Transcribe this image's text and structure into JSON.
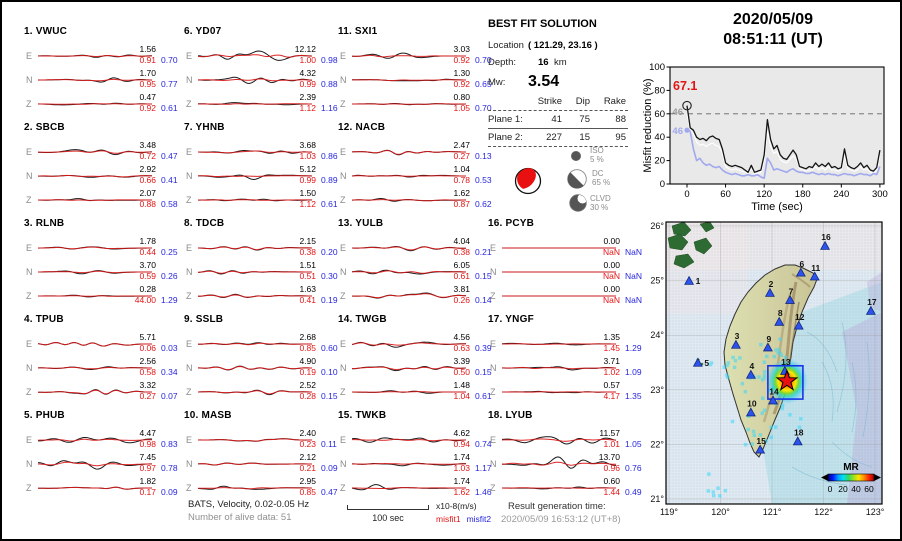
{
  "header": {
    "date": "2020/05/09",
    "time": "08:51:11  (UT)"
  },
  "best_fit": {
    "title": "BEST FIT SOLUTION",
    "location_label": "Location",
    "location_value": "( 121.29,  23.16 )",
    "depth_label": "Depth:",
    "depth_value": "16",
    "depth_unit": "km",
    "mw_label": "Mw:",
    "mw_value": "3.54",
    "table": {
      "headers": [
        "Strike",
        "Dip",
        "Rake"
      ],
      "rows": [
        {
          "label": "Plane 1:",
          "strike": "41",
          "dip": "75",
          "rake": "88"
        },
        {
          "label": "Plane 2:",
          "strike": "227",
          "dip": "15",
          "rake": "95"
        }
      ]
    },
    "decomposition": [
      {
        "name": "ISO",
        "pct": "5 %"
      },
      {
        "name": "DC",
        "pct": "65 %"
      },
      {
        "name": "CLVD",
        "pct": "30 %"
      }
    ]
  },
  "stations": [
    {
      "num": 1,
      "code": "VWUC",
      "components": [
        {
          "ch": "E",
          "amp": "1.56",
          "m1": "0.91",
          "m2": "0.70"
        },
        {
          "ch": "N",
          "amp": "1.70",
          "m1": "0.95",
          "m2": "0.77"
        },
        {
          "ch": "Z",
          "amp": "0.47",
          "m1": "0.92",
          "m2": "0.61"
        }
      ]
    },
    {
      "num": 2,
      "code": "SBCB",
      "components": [
        {
          "ch": "E",
          "amp": "3.48",
          "m1": "0.72",
          "m2": "0.47"
        },
        {
          "ch": "N",
          "amp": "2.92",
          "m1": "0.66",
          "m2": "0.41"
        },
        {
          "ch": "Z",
          "amp": "2.07",
          "m1": "0.88",
          "m2": "0.58"
        }
      ]
    },
    {
      "num": 3,
      "code": "RLNB",
      "components": [
        {
          "ch": "E",
          "amp": "1.78",
          "m1": "0.44",
          "m2": "0.25"
        },
        {
          "ch": "N",
          "amp": "3.70",
          "m1": "0.59",
          "m2": "0.26"
        },
        {
          "ch": "Z",
          "amp": "0.28",
          "m1": "44.00",
          "m2": "1.29"
        }
      ]
    },
    {
      "num": 4,
      "code": "TPUB",
      "components": [
        {
          "ch": "E",
          "amp": "5.71",
          "m1": "0.06",
          "m2": "0.03"
        },
        {
          "ch": "N",
          "amp": "2.56",
          "m1": "0.58",
          "m2": "0.34"
        },
        {
          "ch": "Z",
          "amp": "3.32",
          "m1": "0.27",
          "m2": "0.07"
        }
      ]
    },
    {
      "num": 5,
      "code": "PHUB",
      "components": [
        {
          "ch": "E",
          "amp": "4.47",
          "m1": "0.98",
          "m2": "0.83"
        },
        {
          "ch": "N",
          "amp": "7.45",
          "m1": "0.97",
          "m2": "0.78"
        },
        {
          "ch": "Z",
          "amp": "1.82",
          "m1": "0.17",
          "m2": "0.09"
        }
      ]
    },
    {
      "num": 6,
      "code": "YD07",
      "components": [
        {
          "ch": "E",
          "amp": "12.12",
          "m1": "1.00",
          "m2": "0.98"
        },
        {
          "ch": "N",
          "amp": "4.32",
          "m1": "0.99",
          "m2": "0.88"
        },
        {
          "ch": "Z",
          "amp": "2.39",
          "m1": "1.12",
          "m2": "1.16"
        }
      ]
    },
    {
      "num": 7,
      "code": "YHNB",
      "components": [
        {
          "ch": "E",
          "amp": "3.68",
          "m1": "1.03",
          "m2": "0.86"
        },
        {
          "ch": "N",
          "amp": "5.12",
          "m1": "0.99",
          "m2": "0.89"
        },
        {
          "ch": "Z",
          "amp": "1.50",
          "m1": "1.12",
          "m2": "0.61"
        }
      ]
    },
    {
      "num": 8,
      "code": "TDCB",
      "components": [
        {
          "ch": "E",
          "amp": "2.15",
          "m1": "0.38",
          "m2": "0.20"
        },
        {
          "ch": "N",
          "amp": "1.51",
          "m1": "0.51",
          "m2": "0.30"
        },
        {
          "ch": "Z",
          "amp": "1.63",
          "m1": "0.41",
          "m2": "0.19"
        }
      ]
    },
    {
      "num": 9,
      "code": "SSLB",
      "components": [
        {
          "ch": "E",
          "amp": "2.68",
          "m1": "0.85",
          "m2": "0.60"
        },
        {
          "ch": "N",
          "amp": "4.90",
          "m1": "0.19",
          "m2": "0.10"
        },
        {
          "ch": "Z",
          "amp": "2.52",
          "m1": "0.28",
          "m2": "0.15"
        }
      ]
    },
    {
      "num": 10,
      "code": "MASB",
      "components": [
        {
          "ch": "E",
          "amp": "2.40",
          "m1": "0.23",
          "m2": "0.11"
        },
        {
          "ch": "N",
          "amp": "2.12",
          "m1": "0.21",
          "m2": "0.09"
        },
        {
          "ch": "Z",
          "amp": "2.95",
          "m1": "0.85",
          "m2": "0.47"
        }
      ]
    },
    {
      "num": 11,
      "code": "SXI1",
      "components": [
        {
          "ch": "E",
          "amp": "3.03",
          "m1": "0.92",
          "m2": "0.70"
        },
        {
          "ch": "N",
          "amp": "1.30",
          "m1": "0.92",
          "m2": "0.65"
        },
        {
          "ch": "Z",
          "amp": "0.80",
          "m1": "1.05",
          "m2": "0.70"
        }
      ]
    },
    {
      "num": 12,
      "code": "NACB",
      "components": [
        {
          "ch": "E",
          "amp": "2.47",
          "m1": "0.27",
          "m2": "0.13"
        },
        {
          "ch": "N",
          "amp": "1.04",
          "m1": "0.78",
          "m2": "0.53"
        },
        {
          "ch": "Z",
          "amp": "1.62",
          "m1": "0.87",
          "m2": "0.62"
        }
      ]
    },
    {
      "num": 13,
      "code": "YULB",
      "components": [
        {
          "ch": "E",
          "amp": "4.04",
          "m1": "0.38",
          "m2": "0.21"
        },
        {
          "ch": "N",
          "amp": "6.05",
          "m1": "0.61",
          "m2": "0.15"
        },
        {
          "ch": "Z",
          "amp": "3.81",
          "m1": "0.26",
          "m2": "0.14"
        }
      ]
    },
    {
      "num": 14,
      "code": "TWGB",
      "components": [
        {
          "ch": "E",
          "amp": "4.56",
          "m1": "0.63",
          "m2": "0.39"
        },
        {
          "ch": "N",
          "amp": "3.39",
          "m1": "0.50",
          "m2": "0.15"
        },
        {
          "ch": "Z",
          "amp": "1.48",
          "m1": "1.04",
          "m2": "0.61"
        }
      ]
    },
    {
      "num": 15,
      "code": "TWKB",
      "components": [
        {
          "ch": "E",
          "amp": "4.62",
          "m1": "0.94",
          "m2": "0.74"
        },
        {
          "ch": "N",
          "amp": "1.74",
          "m1": "1.03",
          "m2": "1.17"
        },
        {
          "ch": "Z",
          "amp": "1.74",
          "m1": "1.62",
          "m2": "1.46"
        }
      ]
    },
    {
      "num": 16,
      "code": "PCYB",
      "components": [
        {
          "ch": "E",
          "amp": "0.00",
          "m1": "NaN",
          "m2": "NaN"
        },
        {
          "ch": "N",
          "amp": "0.00",
          "m1": "NaN",
          "m2": "NaN"
        },
        {
          "ch": "Z",
          "amp": "0.00",
          "m1": "NaN",
          "m2": "NaN"
        }
      ]
    },
    {
      "num": 17,
      "code": "YNGF",
      "components": [
        {
          "ch": "E",
          "amp": "1.35",
          "m1": "1.45",
          "m2": "1.29"
        },
        {
          "ch": "N",
          "amp": "3.71",
          "m1": "1.02",
          "m2": "1.09"
        },
        {
          "ch": "Z",
          "amp": "0.57",
          "m1": "4.17",
          "m2": "1.35"
        }
      ]
    },
    {
      "num": 18,
      "code": "LYUB",
      "components": [
        {
          "ch": "E",
          "amp": "11.57",
          "m1": "1.01",
          "m2": "1.05"
        },
        {
          "ch": "N",
          "amp": "13.70",
          "m1": "0.96",
          "m2": "0.76"
        },
        {
          "ch": "Z",
          "amp": "0.60",
          "m1": "1.44",
          "m2": "0.49"
        }
      ]
    }
  ],
  "chart_data": {
    "type": "line",
    "title": "",
    "xlabel": "Time (sec)",
    "ylabel": "Misfit reduction (%)",
    "xlim": [
      -10,
      302
    ],
    "ylim": [
      0,
      100
    ],
    "xticks": [
      0,
      60,
      120,
      180,
      240,
      300
    ],
    "yticks": [
      0,
      20,
      40,
      60,
      80,
      100
    ],
    "x_start": 0,
    "x_step": 5,
    "series": [
      {
        "name": "misfit reduction raw",
        "color": "#141414",
        "values": [
          67,
          48,
          46,
          40,
          38,
          39,
          37,
          40,
          41,
          39,
          38,
          30,
          18,
          16,
          15,
          16,
          15,
          14,
          12,
          10,
          16,
          10,
          11,
          12,
          25,
          55,
          38,
          30,
          33,
          25,
          22,
          21,
          25,
          29,
          25,
          15,
          14,
          13,
          15,
          14,
          18,
          15,
          17,
          15,
          18,
          14,
          15,
          13,
          14,
          30,
          16,
          14,
          13,
          15,
          18,
          14,
          16,
          12,
          11,
          14,
          29
        ]
      },
      {
        "name": "misfit reduction mid",
        "color": "#ffffff",
        "values": [
          60,
          46,
          43,
          36,
          33,
          34,
          32,
          34,
          35,
          33,
          32,
          26,
          15,
          13,
          12,
          13,
          12,
          11,
          10,
          9,
          13,
          9,
          9,
          10,
          20,
          45,
          32,
          26,
          28,
          21,
          19,
          18,
          21,
          24,
          21,
          13,
          12,
          11,
          12,
          12,
          15,
          12,
          14,
          12,
          15,
          12,
          12,
          11,
          12,
          24,
          13,
          12,
          11,
          12,
          15,
          12,
          13,
          10,
          9,
          12,
          24
        ]
      },
      {
        "name": "misfit reduction smooth",
        "color": "#a0a8ee",
        "values": [
          46,
          45,
          30,
          20,
          22,
          18,
          16,
          17,
          15,
          14,
          15,
          12,
          10,
          9,
          8,
          9,
          8,
          7,
          7,
          8,
          7,
          7,
          8,
          6,
          5,
          22,
          18,
          12,
          13,
          12,
          11,
          10,
          12,
          13,
          11,
          10,
          10,
          9,
          9,
          10,
          9,
          8,
          9,
          8,
          9,
          8,
          8,
          7,
          8,
          9,
          8,
          8,
          7,
          8,
          9,
          8,
          8,
          7,
          9,
          8,
          15
        ]
      }
    ],
    "annotations": {
      "best_value_label": "67.1",
      "best_value": 67.1,
      "marker": {
        "x": 0,
        "y": 67
      },
      "gray_start_label": "46",
      "blue_start_label": "46",
      "dashed_line_y": 60
    },
    "background": "#e9e9e9",
    "grid": false,
    "legend_position": "none"
  },
  "map": {
    "lon_ticks": [
      {
        "label": "119°",
        "value": 119
      },
      {
        "label": "120°",
        "value": 120
      },
      {
        "label": "121°",
        "value": 121
      },
      {
        "label": "122°",
        "value": 122
      },
      {
        "label": "123°",
        "value": 123
      }
    ],
    "lat_ticks": [
      {
        "label": "21°",
        "value": 21
      },
      {
        "label": "22°",
        "value": 22
      },
      {
        "label": "23°",
        "value": 23
      },
      {
        "label": "24°",
        "value": 24
      },
      {
        "label": "25°",
        "value": 25
      },
      {
        "label": "26°",
        "value": 26
      }
    ],
    "stations": [
      {
        "id": "1",
        "lon": 119.39,
        "lat": 24.99,
        "side": "right"
      },
      {
        "id": "2",
        "lon": 120.96,
        "lat": 24.77
      },
      {
        "id": "3",
        "lon": 120.3,
        "lat": 23.82
      },
      {
        "id": "4",
        "lon": 120.59,
        "lat": 23.27
      },
      {
        "id": "5",
        "lon": 119.56,
        "lat": 23.49,
        "side": "right"
      },
      {
        "id": "6",
        "lon": 121.56,
        "lat": 25.14
      },
      {
        "id": "7",
        "lon": 121.35,
        "lat": 24.64
      },
      {
        "id": "8",
        "lon": 121.14,
        "lat": 24.24
      },
      {
        "id": "9",
        "lon": 120.92,
        "lat": 23.77
      },
      {
        "id": "10",
        "lon": 120.59,
        "lat": 22.58
      },
      {
        "id": "11",
        "lon": 121.83,
        "lat": 25.07
      },
      {
        "id": "12",
        "lon": 121.52,
        "lat": 24.17
      },
      {
        "id": "13",
        "lon": 121.25,
        "lat": 23.34
      },
      {
        "id": "14",
        "lon": 121.02,
        "lat": 22.8
      },
      {
        "id": "15",
        "lon": 120.77,
        "lat": 21.9
      },
      {
        "id": "16",
        "lon": 122.03,
        "lat": 25.63
      },
      {
        "id": "17",
        "lon": 122.92,
        "lat": 24.44
      },
      {
        "id": "18",
        "lon": 121.5,
        "lat": 22.05
      }
    ],
    "epicenter": {
      "lon": 121.29,
      "lat": 23.16
    },
    "search_box": {
      "lon_min": 120.92,
      "lon_max": 121.6,
      "lat_min": 22.83,
      "lat_max": 23.44
    },
    "colorbar": {
      "label": "MR",
      "tick_labels": [
        "0",
        "20",
        "40",
        "60"
      ]
    }
  },
  "footer": {
    "line1": "BATS, Velocity, 0.02-0.05 Hz",
    "line2": "Number of alive data: 51",
    "scalebar_label": "100 sec",
    "units_label": "x10-8(m/s)",
    "misfit1_label": "misfit1",
    "misfit2_label": "misfit2",
    "result_label": "Result generation time:",
    "result_value": "2020/05/09  16:53:12 (UT+8)"
  },
  "colors": {
    "waveform_observed": "#1a1a1a",
    "waveform_synthetic": "#d81818",
    "misfit1_red": "#e41414",
    "misfit2_blue": "#2626dd",
    "misfit_smooth_line": "#a0a8ee",
    "station_triangle": "#2d53ee",
    "epicenter_star": "#e81010",
    "plot_background": "#e9e9e9"
  }
}
